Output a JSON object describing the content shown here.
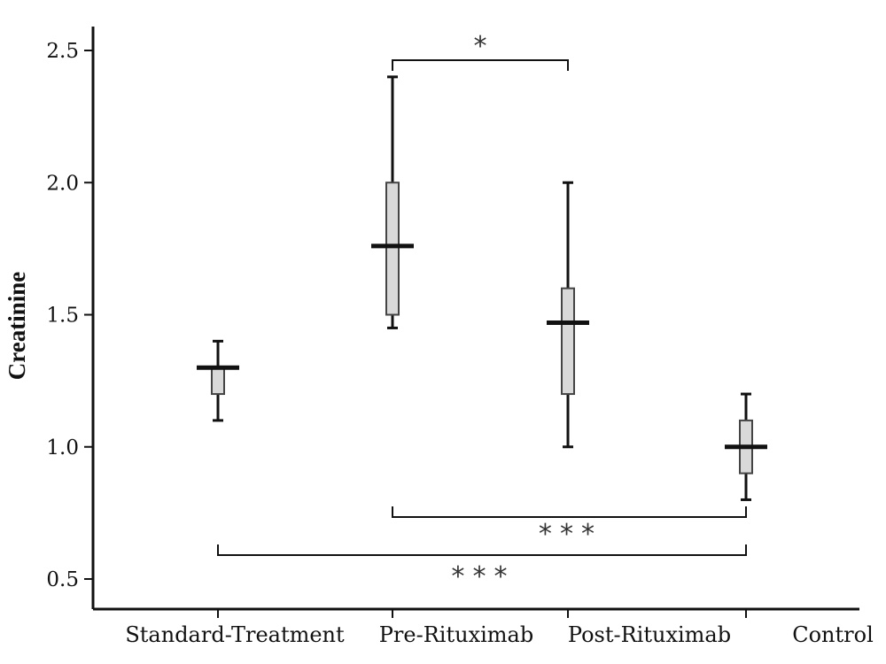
{
  "chart_data": {
    "type": "boxplot",
    "title": "",
    "xlabel": "",
    "ylabel": "Creatinine",
    "ylim": [
      0.45,
      2.62
    ],
    "yticks": [
      0.5,
      1.0,
      1.5,
      2.0,
      2.5
    ],
    "ytick_labels": [
      "0.5",
      "1.0",
      "1.5",
      "2.0",
      "2.5"
    ],
    "grid": false,
    "legend": "none",
    "box_fill": "#d9d9d9",
    "line_color": "#111111",
    "categories": [
      "Standard-Treatment",
      "Pre-Rituximab",
      "Post-Rituximab",
      "Control"
    ],
    "boxes": [
      {
        "min": 1.1,
        "q1": 1.2,
        "median": 1.3,
        "q3": 1.3,
        "max": 1.4
      },
      {
        "min": 1.45,
        "q1": 1.5,
        "median": 1.76,
        "q3": 2.0,
        "max": 2.4
      },
      {
        "min": 1.0,
        "q1": 1.2,
        "median": 1.47,
        "q3": 1.6,
        "max": 2.0
      },
      {
        "min": 0.8,
        "q1": 0.9,
        "median": 1.0,
        "q3": 1.1,
        "max": 1.2
      }
    ],
    "annotations": [
      {
        "from": 1,
        "to": 2,
        "label": "*",
        "position": "above"
      },
      {
        "from": 1,
        "to": 3,
        "label": "***",
        "position": "below"
      },
      {
        "from": 0,
        "to": 3,
        "label": "***",
        "position": "below"
      }
    ]
  }
}
